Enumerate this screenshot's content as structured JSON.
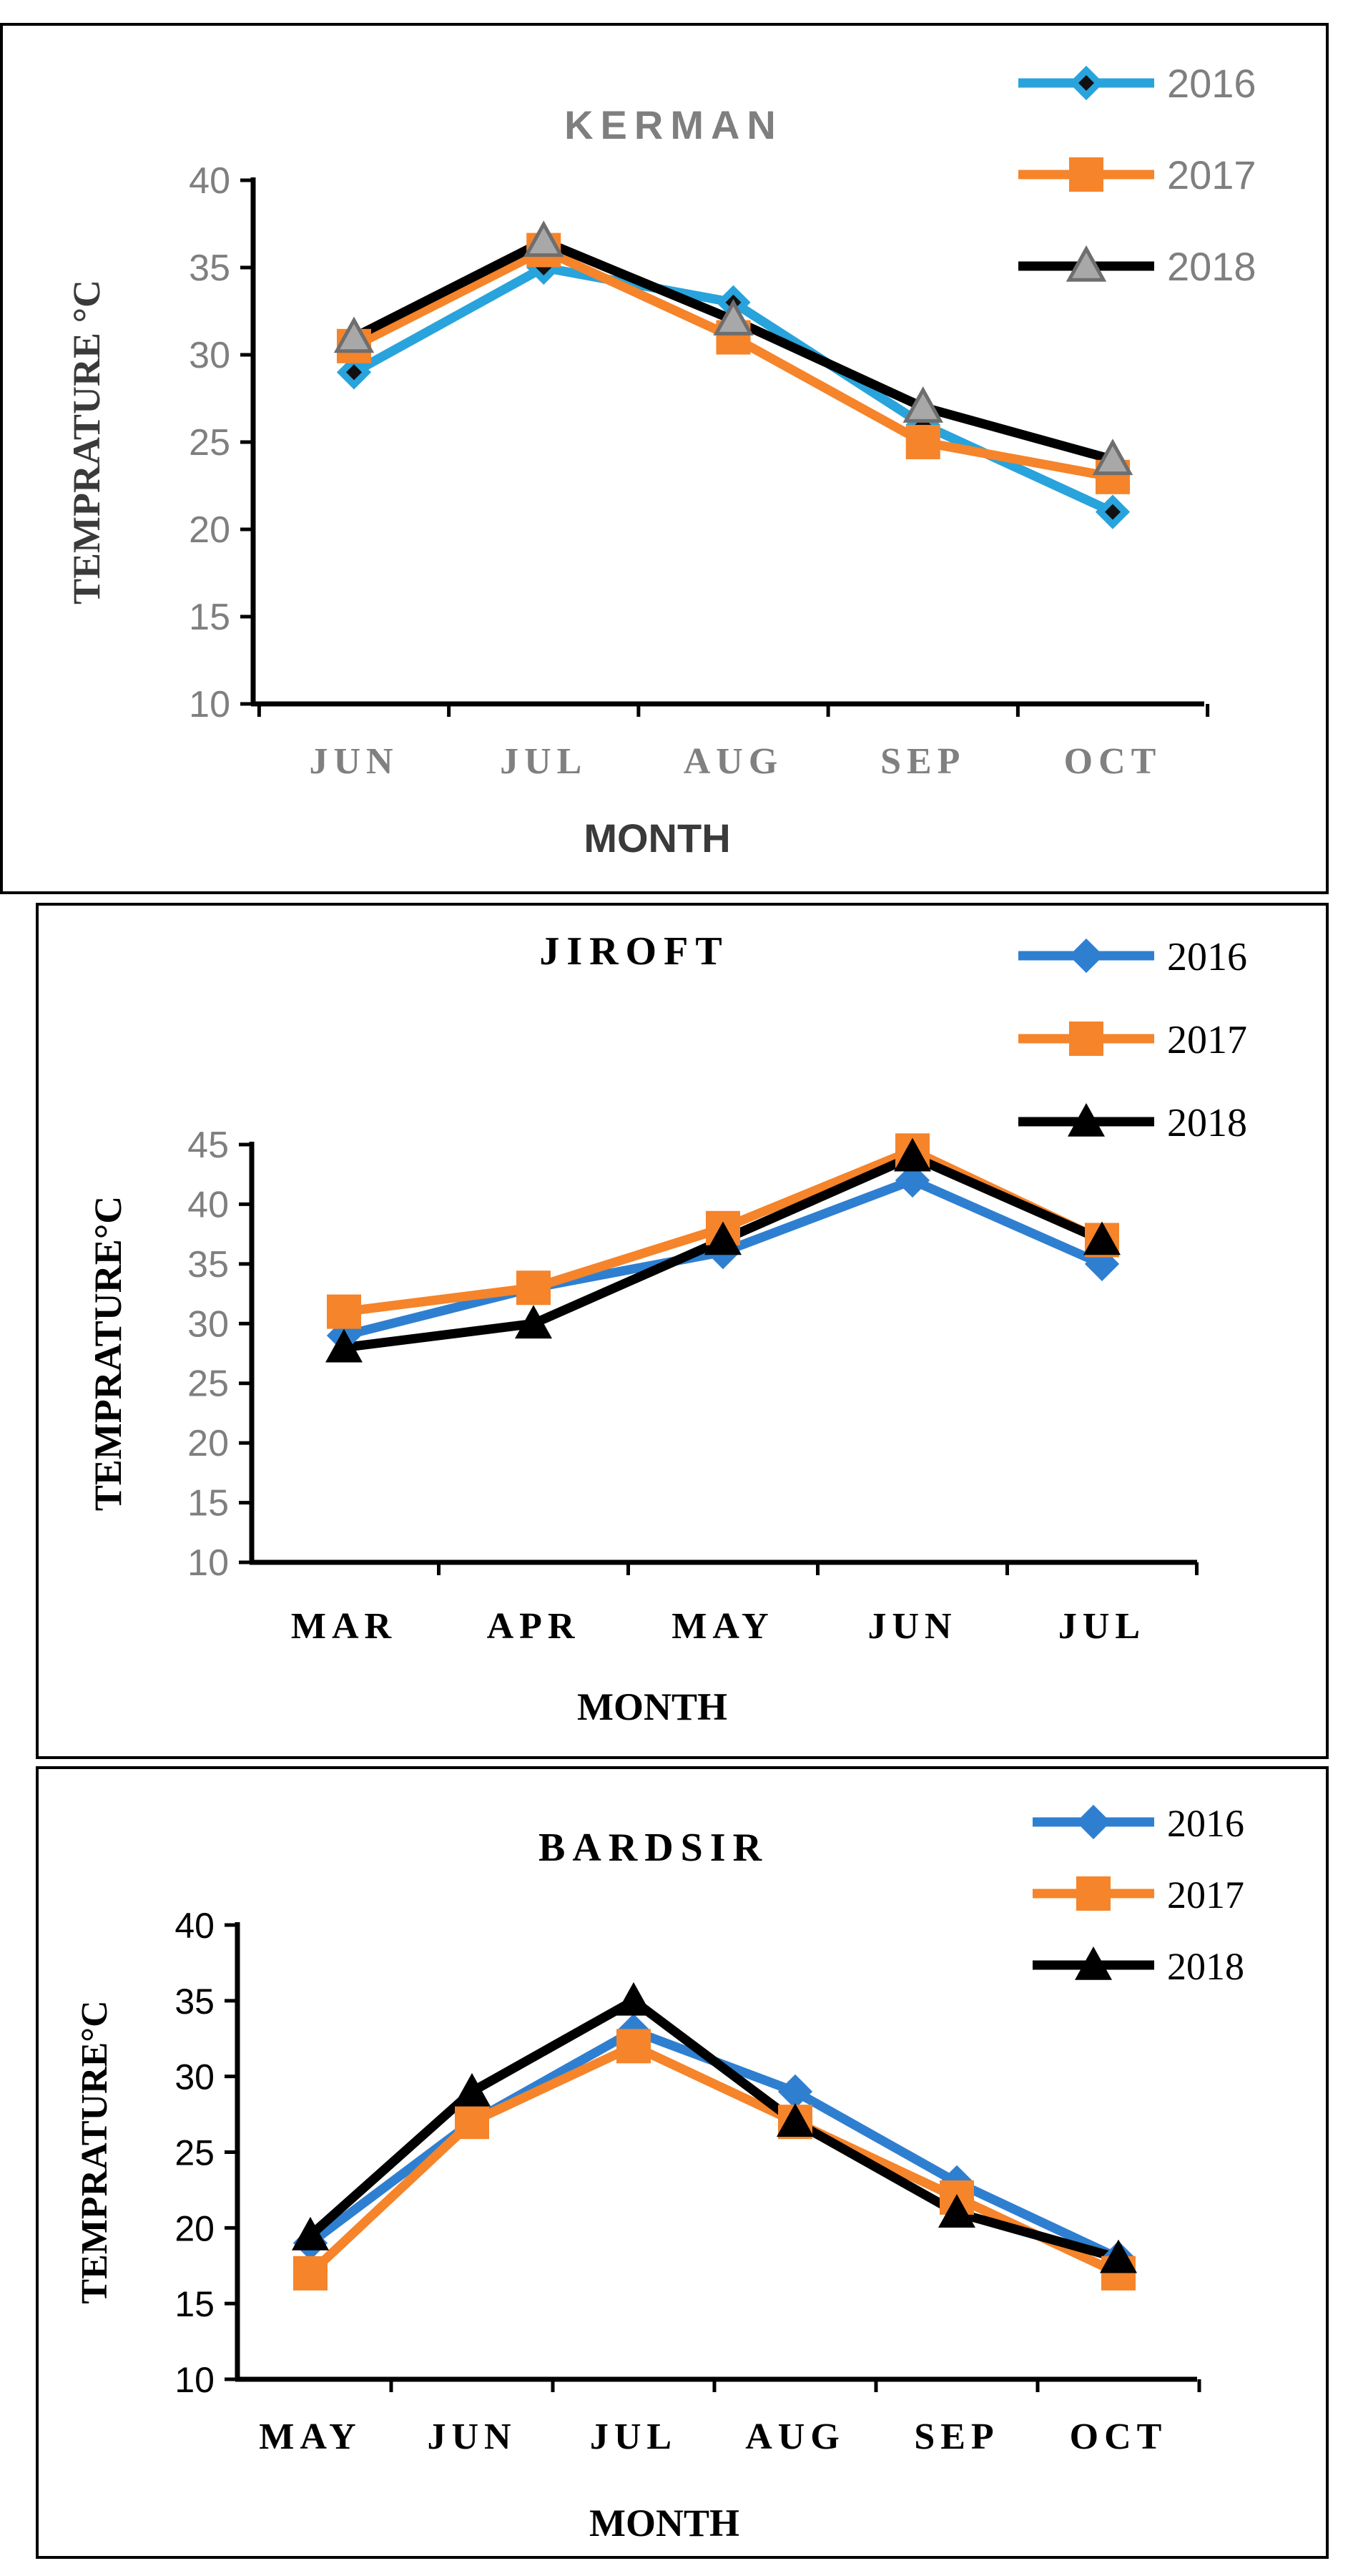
{
  "chart_data": [
    {
      "type": "line",
      "title": "KERMAN",
      "xlabel": "MONTH",
      "ylabel": "TEMPRATURE °C",
      "categories": [
        "JUN",
        "JUL",
        "AUG",
        "SEP",
        "OCT"
      ],
      "ylim": [
        10,
        40
      ],
      "yticks": [
        "10",
        "15",
        "20",
        "25",
        "30",
        "35",
        "40"
      ],
      "legend_position": "top-right",
      "series": [
        {
          "name": "2016",
          "values": [
            29,
            35,
            33,
            26,
            21
          ],
          "color": "#29a3dc",
          "marker": "diamond"
        },
        {
          "name": "2017",
          "values": [
            30.5,
            36,
            31,
            25,
            23
          ],
          "color": "#f5842a",
          "marker": "square"
        },
        {
          "name": "2018",
          "values": [
            31,
            36.5,
            32,
            27,
            24
          ],
          "color": "#000000",
          "marker": "triangle-gray"
        }
      ]
    },
    {
      "type": "line",
      "title": "JIROFT",
      "xlabel": "MONTH",
      "ylabel": "TEMPRATURE°C",
      "categories": [
        "MAR",
        "APR",
        "MAY",
        "JUN",
        "JUL"
      ],
      "ylim": [
        10,
        45
      ],
      "yticks": [
        "10",
        "15",
        "20",
        "25",
        "30",
        "35",
        "40",
        "45"
      ],
      "legend_position": "top-right",
      "series": [
        {
          "name": "2016",
          "values": [
            29,
            33,
            36,
            42,
            35
          ],
          "color": "#2f7fd1",
          "marker": "diamond"
        },
        {
          "name": "2017",
          "values": [
            31,
            33,
            38,
            44.5,
            37
          ],
          "color": "#f5842a",
          "marker": "square"
        },
        {
          "name": "2018",
          "values": [
            28,
            30,
            37,
            44,
            37
          ],
          "color": "#000000",
          "marker": "triangle"
        }
      ]
    },
    {
      "type": "line",
      "title": "BARDSIR",
      "xlabel": "MONTH",
      "ylabel": "TEMPRATURE°C",
      "categories": [
        "MAY",
        "JUN",
        "JUL",
        "AUG",
        "SEP",
        "OCT"
      ],
      "ylim": [
        10,
        40
      ],
      "yticks": [
        "10",
        "15",
        "20",
        "25",
        "30",
        "35",
        "40"
      ],
      "legend_position": "top-right",
      "series": [
        {
          "name": "2016",
          "values": [
            19,
            27,
            33,
            29,
            23,
            18
          ],
          "color": "#2f7fd1",
          "marker": "diamond"
        },
        {
          "name": "2017",
          "values": [
            17,
            27,
            32,
            27,
            22,
            17
          ],
          "color": "#f5842a",
          "marker": "square"
        },
        {
          "name": "2018",
          "values": [
            19.5,
            29,
            35,
            27,
            21,
            18
          ],
          "color": "#000000",
          "marker": "triangle"
        }
      ]
    }
  ]
}
